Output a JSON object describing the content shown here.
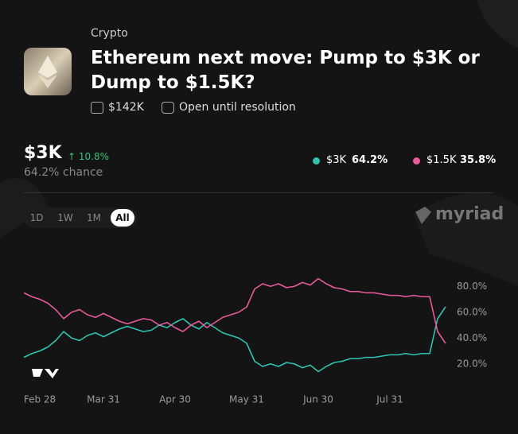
{
  "header": {
    "category": "Crypto",
    "title": "Ethereum next move: Pump to $3K or Dump to $1.5K?",
    "volume": "$142K",
    "status": "Open until resolution",
    "leader": "$3K",
    "change": "↑ 10.8%",
    "chance": "64.2% chance",
    "legend_chances": [
      "64.2%",
      "35.8%"
    ],
    "ranges": [
      "1D",
      "1W",
      "1M",
      "All"
    ],
    "brand": "myriad"
  },
  "chart_data": {
    "type": "line",
    "categories": [
      null,
      null,
      "Feb 28",
      null,
      null,
      null,
      null,
      null,
      null,
      null,
      "Mar 31",
      null,
      null,
      null,
      null,
      null,
      null,
      null,
      null,
      "Apr 30",
      null,
      null,
      null,
      null,
      null,
      null,
      null,
      null,
      "May 31",
      null,
      null,
      null,
      null,
      null,
      null,
      null,
      null,
      "Jun 30",
      null,
      null,
      null,
      null,
      null,
      null,
      null,
      null,
      "Jul 31",
      null,
      null,
      null,
      null,
      null,
      null,
      null
    ],
    "series": [
      {
        "name": "$3K",
        "color": "#2ec4b0",
        "values": [
          25,
          28,
          30,
          33,
          38,
          45,
          40,
          38,
          42,
          44,
          41,
          44,
          47,
          49,
          47,
          45,
          46,
          50,
          48,
          52,
          55,
          50,
          47,
          52,
          48,
          44,
          42,
          40,
          36,
          22,
          18,
          20,
          18,
          21,
          20,
          17,
          19,
          14,
          18,
          21,
          22,
          24,
          24,
          25,
          25,
          26,
          27,
          27,
          28,
          27,
          28,
          28,
          55,
          64.2
        ]
      },
      {
        "name": "$1.5K",
        "color": "#e85a9b",
        "values": [
          75,
          72,
          70,
          67,
          62,
          55,
          60,
          62,
          58,
          56,
          59,
          56,
          53,
          51,
          53,
          55,
          54,
          50,
          52,
          48,
          45,
          50,
          53,
          48,
          52,
          56,
          58,
          60,
          64,
          78,
          82,
          80,
          82,
          79,
          80,
          83,
          81,
          86,
          82,
          79,
          78,
          76,
          76,
          75,
          75,
          74,
          73,
          73,
          72,
          73,
          72,
          72,
          45,
          35.8
        ]
      }
    ],
    "ylim": [
      10,
      90
    ],
    "yticks": [
      {
        "value": 20,
        "label": "20.0%"
      },
      {
        "value": 40,
        "label": "40.0%"
      },
      {
        "value": 60,
        "label": "60.0%"
      },
      {
        "value": 80,
        "label": "80.0%"
      }
    ],
    "grid": false
  }
}
